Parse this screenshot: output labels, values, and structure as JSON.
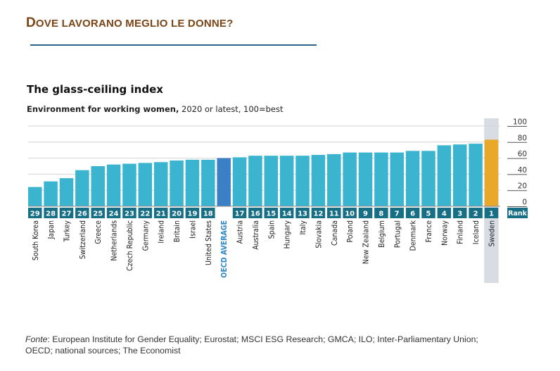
{
  "slide": {
    "title": "Dove lavorano meglio le donne?"
  },
  "source": {
    "label": "Fonte",
    "text": ": European Institute for Gender Equality; Eurostat; MSCI ESG Research; GMCA; ILO; Inter-Parliamentary Union; OECD; national sources; The Economist"
  },
  "chart_data": {
    "type": "bar",
    "title": "The glass-ceiling index",
    "subtitle_bold": "Environment for working women,",
    "subtitle_rest": " 2020 or latest, 100=best",
    "xlabel": "",
    "ylabel": "",
    "ylim": [
      0,
      100
    ],
    "yticks": [
      0,
      20,
      40,
      60,
      80,
      100
    ],
    "y_axis_side": "right",
    "grid": true,
    "rank_label": "Rank",
    "categories": [
      "South Korea",
      "Japan",
      "Turkey",
      "Switzerland",
      "Greece",
      "Netherlands",
      "Czech Republic",
      "Germany",
      "Ireland",
      "Britain",
      "Israel",
      "United States",
      "OECD AVERAGE",
      "Austria",
      "Australia",
      "Spain",
      "Hungary",
      "Italy",
      "Slovakia",
      "Canada",
      "Poland",
      "New Zealand",
      "Belgium",
      "Portugal",
      "Denmark",
      "France",
      "Norway",
      "Finland",
      "Iceland",
      "Sweden"
    ],
    "ranks": [
      "29",
      "28",
      "27",
      "26",
      "25",
      "24",
      "23",
      "22",
      "21",
      "20",
      "19",
      "18",
      "",
      "17",
      "16",
      "15",
      "14",
      "13",
      "12",
      "11",
      "10",
      "9",
      "8",
      "7",
      "6",
      "5",
      "4",
      "3",
      "2",
      "1"
    ],
    "values": [
      24,
      31,
      35,
      45,
      50,
      52,
      53,
      54,
      55,
      57,
      58,
      58,
      60,
      61,
      63,
      63,
      63,
      63,
      64,
      65,
      67,
      67,
      67,
      67,
      69,
      69,
      76,
      77,
      78,
      83
    ],
    "highlight": {
      "OECD AVERAGE": "average",
      "Sweden": "top"
    },
    "colors": {
      "bar": "#3bb4d0",
      "average": "#3b7fc4",
      "top": "#e8a92a",
      "rank_box": "#166f84",
      "top_column_bg": "#d8dde3",
      "grid": "#d3d3d3",
      "average_label": "#2f86c5"
    }
  }
}
